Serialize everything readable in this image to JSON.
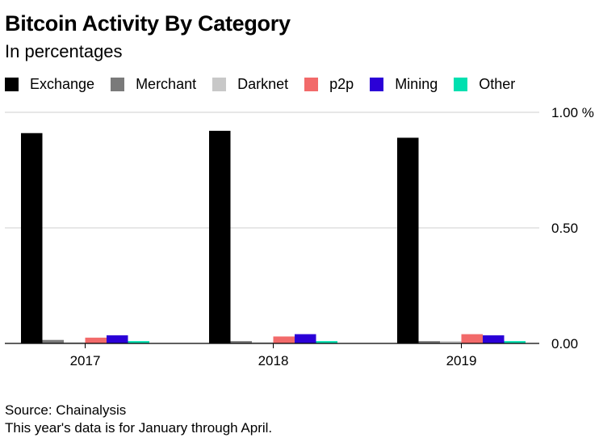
{
  "title": "Bitcoin Activity By Category",
  "subtitle": "In percentages",
  "source_line": "Source: Chainalysis",
  "note_line": "This year's data is for January through April.",
  "colors": {
    "Exchange": "#000000",
    "Merchant": "#7a7a7a",
    "Darknet": "#c8c8c8",
    "p2p": "#f26a6a",
    "Mining": "#2b00d7",
    "Other": "#00e0b0"
  },
  "chart_data": {
    "type": "bar",
    "title": "Bitcoin Activity By Category",
    "subtitle": "In percentages",
    "categories": [
      "2017",
      "2018",
      "2019"
    ],
    "series": [
      {
        "name": "Exchange",
        "values": [
          0.91,
          0.92,
          0.89
        ]
      },
      {
        "name": "Merchant",
        "values": [
          0.015,
          0.01,
          0.01
        ]
      },
      {
        "name": "Darknet",
        "values": [
          0.005,
          0.005,
          0.01
        ]
      },
      {
        "name": "p2p",
        "values": [
          0.025,
          0.03,
          0.04
        ]
      },
      {
        "name": "Mining",
        "values": [
          0.035,
          0.04,
          0.035
        ]
      },
      {
        "name": "Other",
        "values": [
          0.01,
          0.01,
          0.01
        ]
      }
    ],
    "yticks": [
      {
        "value": 1.0,
        "label": "1.00 %"
      },
      {
        "value": 0.5,
        "label": "0.50"
      },
      {
        "value": 0.0,
        "label": "0.00"
      }
    ],
    "ylim": [
      0,
      1.0
    ],
    "xlabel": "",
    "ylabel": "",
    "grid": true,
    "legend": "top"
  }
}
